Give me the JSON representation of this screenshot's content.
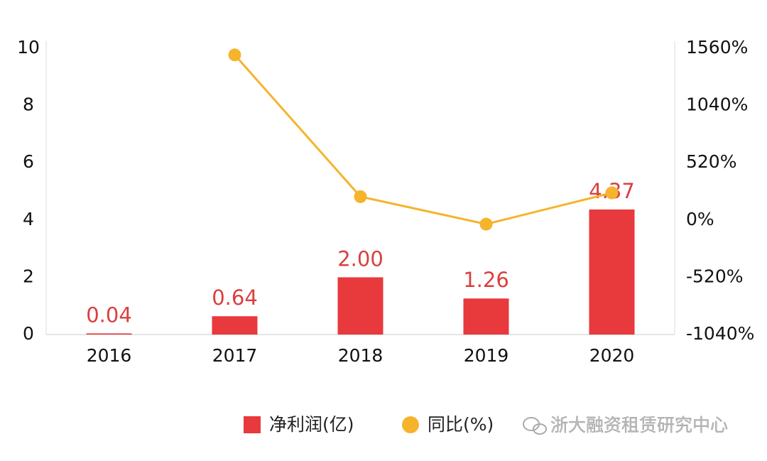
{
  "chart_data": {
    "type": "bar",
    "categories": [
      "2016",
      "2017",
      "2018",
      "2019",
      "2020"
    ],
    "series": [
      {
        "name": "净利润(亿)",
        "type": "bar",
        "color": "#e8393d",
        "values": [
          0.04,
          0.64,
          2.0,
          1.26,
          4.37
        ],
        "value_labels": [
          "0.04",
          "0.64",
          "2.00",
          "1.26",
          "4.37"
        ]
      },
      {
        "name": "同比(%)",
        "type": "line",
        "color": "#f5b42c",
        "axis": "y2",
        "values": [
          null,
          1500,
          212.5,
          -37,
          247
        ]
      }
    ],
    "ylim": [
      0,
      10
    ],
    "yticks": [
      0,
      2,
      4,
      6,
      8,
      10
    ],
    "y2lim": [
      -1040,
      1560
    ],
    "y2ticks": [
      {
        "value": -1040,
        "label": "-1040%"
      },
      {
        "value": -520,
        "label": "-520%"
      },
      {
        "value": 0,
        "label": "0%"
      },
      {
        "value": 520,
        "label": "520%"
      },
      {
        "value": 1040,
        "label": "1040%"
      },
      {
        "value": 1560,
        "label": "1560%"
      }
    ],
    "watermark": "浙大融资租赁研究中心"
  }
}
